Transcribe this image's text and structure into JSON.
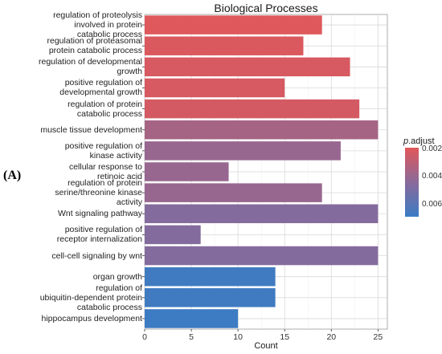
{
  "panel_label": "(A)",
  "chart_data": {
    "type": "bar",
    "orientation": "horizontal",
    "title": "Biological Processes",
    "xlabel": "Count",
    "ylabel": "",
    "xlim": [
      0,
      26
    ],
    "x_ticks": [
      "0",
      "5",
      "10",
      "15",
      "20",
      "25"
    ],
    "grid": true,
    "legend_placement": "right",
    "categories": [
      "regulation of proteolysis\ninvolved in protein\ncatabolic process",
      "regulation of proteasomal\nprotein catabolic process",
      "regulation of developmental\ngrowth",
      "positive regulation of\ndevelopmental growth",
      "regulation of protein\ncatabolic process",
      "muscle tissue development",
      "positive regulation of\nkinase activity",
      "cellular response to\nretinoic acid",
      "regulation of protein\nserine/threonine kinase\nactivity",
      "Wnt signaling pathway",
      "positive regulation of\nreceptor internalization",
      "cell-cell signaling by wnt",
      "organ growth",
      "regulation of\nubiquitin-dependent protein\ncatabolic process",
      "hippocampus development"
    ],
    "values": [
      19,
      17,
      22,
      15,
      23,
      25,
      21,
      9,
      19,
      25,
      6,
      25,
      14,
      14,
      10
    ],
    "p_adjust": [
      0.002,
      0.0021,
      0.0022,
      0.0022,
      0.0023,
      0.0036,
      0.004,
      0.004,
      0.004,
      0.0046,
      0.0046,
      0.0046,
      0.0067,
      0.0067,
      0.0068
    ],
    "colorbar": {
      "title_italic": "p",
      "title_rest": ".adjust",
      "ticks": [
        "0.002",
        "0.004",
        "0.006"
      ],
      "tick_values": [
        0.002,
        0.004,
        0.006
      ],
      "range": [
        0.0019,
        0.0069
      ],
      "low_color": "#e15759",
      "mid_color": "#8a6a9a",
      "high_color": "#3a7cc4"
    }
  }
}
